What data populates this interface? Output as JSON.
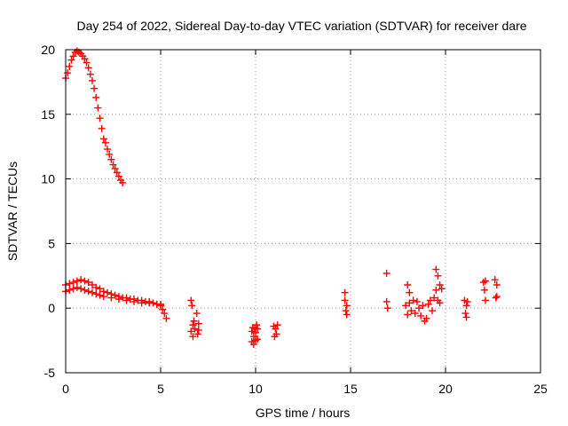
{
  "chart_data": {
    "type": "scatter",
    "title": "Day 254 of 2022, Sidereal Day-to-day VTEC variation (SDTVAR) for receiver dare",
    "xlabel": "GPS time / hours",
    "ylabel": "SDTVAR / TECUs",
    "xlim": [
      0,
      25
    ],
    "ylim": [
      -5,
      20
    ],
    "xticks": [
      0,
      5,
      10,
      15,
      20,
      25
    ],
    "yticks": [
      -5,
      0,
      5,
      10,
      15,
      20
    ],
    "grid": true,
    "marker": "+",
    "series": [
      {
        "name": "SDTVAR",
        "color": "#ff0000",
        "x": [
          0.0,
          0.1,
          0.2,
          0.3,
          0.4,
          0.5,
          0.6,
          0.7,
          0.8,
          0.9,
          1.0,
          1.1,
          1.2,
          1.3,
          1.4,
          1.5,
          1.6,
          1.7,
          1.8,
          1.9,
          2.0,
          2.1,
          2.2,
          2.3,
          2.4,
          2.5,
          2.6,
          2.7,
          2.8,
          2.9,
          3.0,
          0.0,
          0.2,
          0.4,
          0.6,
          0.8,
          1.0,
          1.2,
          1.4,
          1.6,
          1.8,
          2.0,
          2.2,
          2.4,
          2.6,
          2.8,
          3.0,
          3.2,
          3.4,
          3.6,
          3.8,
          4.0,
          4.2,
          4.4,
          4.6,
          4.8,
          5.0,
          0.0,
          0.2,
          0.4,
          0.6,
          0.8,
          1.0,
          1.2,
          1.4,
          1.6,
          1.8,
          2.0,
          2.4,
          2.8,
          3.2,
          3.6,
          4.0,
          4.4,
          4.8,
          5.0,
          5.1,
          5.2,
          5.3,
          6.6,
          6.6,
          6.65,
          6.7,
          6.7,
          6.75,
          6.8,
          6.9,
          6.95,
          7.0,
          7.0,
          9.8,
          9.8,
          9.85,
          9.9,
          9.9,
          9.95,
          10.0,
          10.0,
          10.05,
          10.1,
          10.1,
          10.95,
          11.0,
          11.05,
          11.1,
          11.15,
          14.7,
          14.7,
          14.75,
          14.8,
          14.8,
          16.9,
          16.9,
          16.95,
          17.9,
          18.0,
          18.0,
          18.1,
          18.1,
          18.2,
          18.3,
          18.4,
          18.5,
          18.6,
          18.7,
          18.8,
          18.9,
          19.0,
          19.1,
          19.2,
          19.3,
          19.4,
          19.5,
          19.5,
          19.6,
          19.6,
          19.7,
          19.7,
          19.8,
          21.0,
          21.05,
          21.1,
          21.1,
          21.15,
          22.0,
          22.05,
          22.1,
          22.1,
          22.6,
          22.65,
          22.7,
          22.7
        ],
        "y": [
          17.8,
          18.2,
          18.7,
          19.2,
          19.5,
          19.8,
          19.9,
          19.8,
          19.7,
          19.5,
          19.3,
          19.0,
          18.6,
          18.1,
          17.6,
          17.0,
          16.3,
          15.5,
          14.7,
          13.9,
          13.1,
          12.8,
          12.3,
          11.9,
          11.5,
          11.1,
          10.8,
          10.5,
          10.2,
          9.9,
          9.7,
          1.8,
          1.9,
          2.0,
          2.1,
          2.2,
          2.1,
          2.0,
          1.8,
          1.6,
          1.5,
          1.3,
          1.2,
          1.1,
          1.0,
          0.9,
          0.8,
          0.8,
          0.7,
          0.7,
          0.6,
          0.6,
          0.5,
          0.5,
          0.4,
          0.3,
          0.2,
          1.3,
          1.4,
          1.5,
          1.6,
          1.5,
          1.4,
          1.3,
          1.2,
          1.1,
          1.0,
          0.9,
          0.8,
          0.7,
          0.6,
          0.5,
          0.4,
          0.4,
          0.3,
          0.3,
          -0.1,
          -0.4,
          -0.8,
          0.6,
          -1.8,
          0.2,
          -1.3,
          -2.2,
          -1.0,
          -1.6,
          -0.4,
          -2.0,
          -1.2,
          -1.7,
          -1.8,
          -2.6,
          -1.5,
          -2.8,
          -2.2,
          -1.6,
          -2.5,
          -1.9,
          -1.3,
          -2.4,
          -1.6,
          -1.4,
          -2.2,
          -1.6,
          -2.0,
          -1.3,
          1.2,
          0.6,
          -0.2,
          0.2,
          -0.5,
          2.7,
          0.5,
          0.0,
          0.2,
          1.8,
          -0.5,
          1.2,
          0.4,
          -0.2,
          0.6,
          -0.4,
          0.5,
          0.0,
          -0.6,
          0.2,
          -1.0,
          -0.8,
          0.3,
          0.6,
          -0.2,
          0.8,
          3.0,
          1.4,
          2.5,
          0.6,
          1.8,
          0.4,
          1.5,
          0.6,
          -0.4,
          0.2,
          -0.7,
          0.5,
          2.0,
          1.4,
          0.6,
          2.1,
          2.2,
          0.8,
          1.8,
          0.9
        ]
      }
    ]
  }
}
